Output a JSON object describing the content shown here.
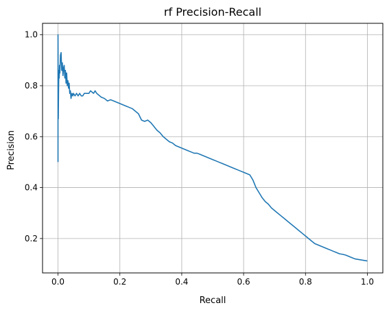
{
  "chart_data": {
    "type": "line",
    "title": "rf Precision-Recall",
    "xlabel": "Recall",
    "ylabel": "Precision",
    "xlim": [
      -0.05,
      1.05
    ],
    "ylim": [
      0.065,
      1.045
    ],
    "x_ticks": [
      "0.0",
      "0.2",
      "0.4",
      "0.6",
      "0.8",
      "1.0"
    ],
    "x_tick_values": [
      0.0,
      0.2,
      0.4,
      0.6,
      0.8,
      1.0
    ],
    "y_ticks": [
      "0.2",
      "0.4",
      "0.6",
      "0.8",
      "1.0"
    ],
    "y_tick_values": [
      0.2,
      0.4,
      0.6,
      0.8,
      1.0
    ],
    "grid": true,
    "colors": {
      "line": "#1f77b4",
      "grid": "#b0b0b0",
      "axes": "#000000"
    },
    "series": [
      {
        "x": [
          0.0,
          0.0,
          0.001,
          0.002,
          0.003,
          0.004,
          0.005,
          0.006,
          0.008,
          0.01,
          0.012,
          0.014,
          0.016,
          0.018,
          0.02,
          0.022,
          0.024,
          0.026,
          0.028,
          0.03,
          0.032,
          0.034,
          0.036,
          0.038,
          0.04,
          0.042,
          0.045,
          0.048,
          0.05,
          0.055,
          0.06,
          0.065,
          0.07,
          0.075,
          0.08,
          0.085,
          0.09,
          0.095,
          0.1,
          0.105,
          0.11,
          0.115,
          0.12,
          0.125,
          0.13,
          0.135,
          0.14,
          0.15,
          0.16,
          0.17,
          0.18,
          0.19,
          0.2,
          0.21,
          0.22,
          0.23,
          0.24,
          0.25,
          0.26,
          0.27,
          0.28,
          0.29,
          0.3,
          0.31,
          0.32,
          0.33,
          0.34,
          0.35,
          0.36,
          0.37,
          0.38,
          0.39,
          0.4,
          0.41,
          0.42,
          0.43,
          0.44,
          0.45,
          0.46,
          0.47,
          0.48,
          0.49,
          0.5,
          0.51,
          0.52,
          0.53,
          0.54,
          0.55,
          0.56,
          0.57,
          0.58,
          0.59,
          0.6,
          0.61,
          0.62,
          0.63,
          0.64,
          0.65,
          0.66,
          0.67,
          0.68,
          0.69,
          0.7,
          0.71,
          0.72,
          0.73,
          0.74,
          0.75,
          0.76,
          0.77,
          0.78,
          0.79,
          0.8,
          0.81,
          0.82,
          0.83,
          0.84,
          0.85,
          0.86,
          0.87,
          0.88,
          0.89,
          0.9,
          0.91,
          0.92,
          0.93,
          0.94,
          0.95,
          0.96,
          0.97,
          0.98,
          0.99,
          1.0
        ],
        "y": [
          0.5,
          1.0,
          0.67,
          0.8,
          0.86,
          0.83,
          0.88,
          0.85,
          0.92,
          0.93,
          0.86,
          0.89,
          0.84,
          0.87,
          0.88,
          0.83,
          0.86,
          0.81,
          0.85,
          0.8,
          0.82,
          0.79,
          0.81,
          0.77,
          0.78,
          0.75,
          0.77,
          0.76,
          0.77,
          0.76,
          0.77,
          0.76,
          0.77,
          0.76,
          0.76,
          0.77,
          0.77,
          0.77,
          0.77,
          0.78,
          0.775,
          0.77,
          0.78,
          0.77,
          0.765,
          0.76,
          0.755,
          0.75,
          0.74,
          0.745,
          0.74,
          0.735,
          0.73,
          0.725,
          0.72,
          0.715,
          0.71,
          0.7,
          0.69,
          0.665,
          0.66,
          0.665,
          0.655,
          0.64,
          0.625,
          0.615,
          0.6,
          0.59,
          0.58,
          0.575,
          0.565,
          0.56,
          0.555,
          0.55,
          0.545,
          0.54,
          0.535,
          0.535,
          0.53,
          0.525,
          0.52,
          0.515,
          0.51,
          0.505,
          0.5,
          0.495,
          0.49,
          0.485,
          0.48,
          0.475,
          0.47,
          0.465,
          0.46,
          0.455,
          0.45,
          0.43,
          0.4,
          0.38,
          0.36,
          0.345,
          0.335,
          0.32,
          0.31,
          0.3,
          0.29,
          0.28,
          0.27,
          0.26,
          0.25,
          0.24,
          0.23,
          0.22,
          0.21,
          0.2,
          0.19,
          0.18,
          0.175,
          0.17,
          0.165,
          0.16,
          0.155,
          0.15,
          0.145,
          0.14,
          0.138,
          0.135,
          0.13,
          0.125,
          0.12,
          0.118,
          0.116,
          0.114,
          0.112
        ]
      }
    ]
  }
}
